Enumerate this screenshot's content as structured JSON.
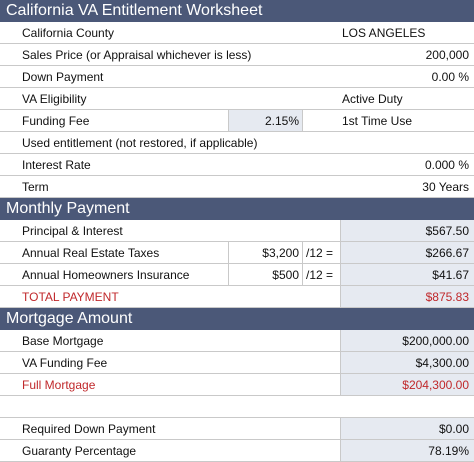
{
  "worksheet": {
    "title": "California VA Entitlement Worksheet",
    "rows": [
      {
        "label": "California County",
        "value": "LOS ANGELES"
      },
      {
        "label": "Sales Price (or Appraisal whichever is less)",
        "value": "200,000"
      },
      {
        "label": "Down Payment",
        "value": "0.00 %"
      },
      {
        "label": "VA Eligibility",
        "value": "Active Duty"
      },
      {
        "label": "Funding Fee",
        "rate": "2.15%",
        "value": "1st Time Use"
      },
      {
        "label": "Used entitlement (not restored, if applicable)"
      },
      {
        "label": "Interest Rate",
        "value": "0.000 %"
      },
      {
        "label": "Term",
        "value": "30 Years"
      }
    ]
  },
  "monthly_payment": {
    "title": "Monthly Payment",
    "rows": [
      {
        "label": "Principal & Interest",
        "value": "$567.50"
      },
      {
        "label": "Annual Real Estate Taxes",
        "annual": "$3,200",
        "divisor": "/12 =",
        "value": "$266.67"
      },
      {
        "label": "Annual Homeowners Insurance",
        "annual": "$500",
        "divisor": "/12 =",
        "value": "$41.67"
      },
      {
        "label": "TOTAL PAYMENT",
        "value": "$875.83"
      }
    ]
  },
  "mortgage_amount": {
    "title": "Mortgage Amount",
    "rows": [
      {
        "label": "Base Mortgage",
        "value": "$200,000.00"
      },
      {
        "label": "VA Funding Fee",
        "value": "$4,300.00"
      },
      {
        "label": "Full Mortgage",
        "value": "$204,300.00"
      }
    ]
  },
  "summary": {
    "rows": [
      {
        "label": "Required Down Payment",
        "value": "$0.00"
      },
      {
        "label": "Guaranty Percentage",
        "value": "78.19%"
      }
    ]
  }
}
